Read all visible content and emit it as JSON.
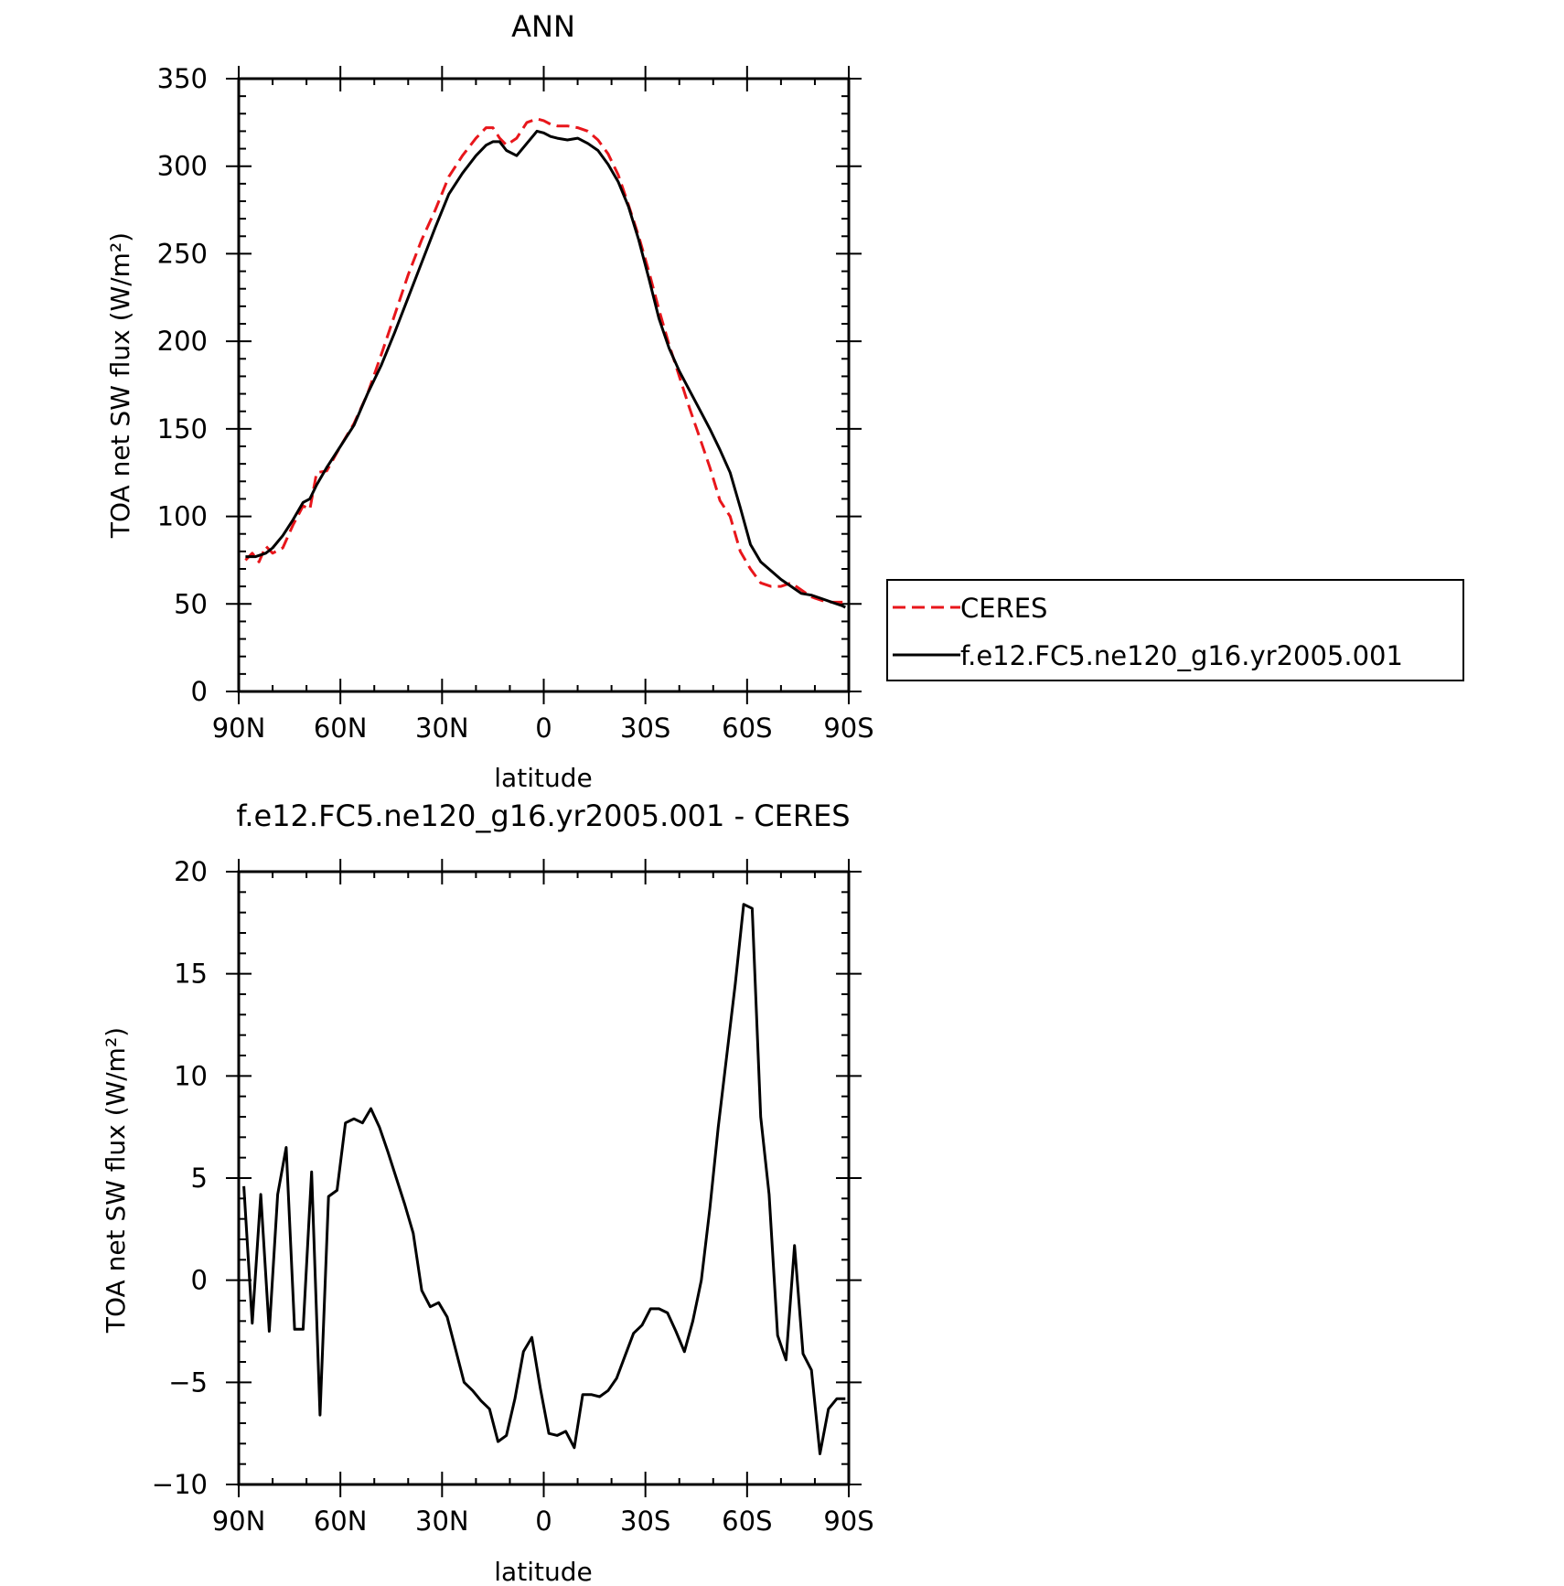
{
  "chart_data": [
    {
      "type": "line",
      "title": "ANN",
      "xlabel": "latitude",
      "ylabel": "TOA net SW flux (W/m²)",
      "xlim": [
        90,
        -90
      ],
      "ylim": [
        0,
        350
      ],
      "xticks": [
        90,
        60,
        30,
        0,
        -30,
        -60,
        -90
      ],
      "xtick_labels": [
        "90N",
        "60N",
        "30N",
        "0",
        "30S",
        "60S",
        "90S"
      ],
      "yticks": [
        0,
        50,
        100,
        150,
        200,
        250,
        300,
        350
      ],
      "ytick_labels": [
        "0",
        "50",
        "100",
        "150",
        "200",
        "250",
        "300",
        "350"
      ],
      "legend_position": "right",
      "series": [
        {
          "name": "CERES",
          "color": "#e8161b",
          "dash": "dashed",
          "x": [
            88,
            86,
            84,
            82,
            80,
            77,
            74,
            71,
            69,
            67,
            64,
            60,
            56,
            52,
            48,
            44,
            40,
            36,
            32,
            28,
            24,
            20,
            17,
            15,
            13,
            11,
            8,
            5,
            2,
            0,
            -2,
            -4,
            -7,
            -10,
            -13,
            -16,
            -19,
            -22,
            -25,
            -28,
            -31,
            -34,
            -37,
            -40,
            -43,
            -46,
            -49,
            -52,
            -55,
            -58,
            -61,
            -64,
            -67,
            -70,
            -73,
            -76,
            -79,
            -82,
            -85,
            -88,
            -89
          ],
          "values": [
            75,
            79,
            74,
            83,
            79,
            82,
            95,
            106,
            104,
            125,
            126,
            140,
            153,
            170,
            192,
            215,
            238,
            258,
            275,
            294,
            306,
            316,
            322,
            322,
            316,
            312,
            316,
            325,
            327,
            326,
            324,
            323,
            323,
            322,
            320,
            315,
            307,
            295,
            278,
            260,
            240,
            218,
            198,
            180,
            162,
            145,
            128,
            109,
            100,
            80,
            70,
            62,
            60,
            60,
            62,
            58,
            54,
            52,
            51,
            51,
            51
          ]
        },
        {
          "name": "f.e12.FC5.ne120_g16.yr2005.001",
          "color": "#000000",
          "dash": "solid",
          "x": [
            88,
            85,
            82,
            80,
            77,
            74,
            71,
            69,
            67,
            64,
            60,
            56,
            52,
            48,
            44,
            40,
            36,
            32,
            28,
            24,
            20,
            17,
            15,
            13,
            11,
            8,
            5,
            2,
            0,
            -2,
            -4,
            -7,
            -10,
            -13,
            -16,
            -19,
            -22,
            -25,
            -28,
            -31,
            -34,
            -37,
            -40,
            -43,
            -46,
            -49,
            -52,
            -55,
            -58,
            -61,
            -64,
            -67,
            -70,
            -73,
            -76,
            -79,
            -82,
            -85,
            -88,
            -89
          ],
          "values": [
            77,
            77,
            79,
            82,
            89,
            98,
            108,
            110,
            118,
            128,
            140,
            152,
            170,
            186,
            205,
            225,
            245,
            265,
            284,
            296,
            306,
            312,
            314,
            314,
            309,
            306,
            313,
            320,
            319,
            317,
            316,
            315,
            316,
            313,
            309,
            301,
            291,
            277,
            258,
            236,
            213,
            196,
            183,
            172,
            161,
            150,
            138,
            125,
            105,
            84,
            74,
            69,
            64,
            60,
            56,
            55,
            53,
            51,
            49,
            48
          ]
        }
      ]
    },
    {
      "type": "line",
      "title": "f.e12.FC5.ne120_g16.yr2005.001 - CERES",
      "xlabel": "latitude",
      "ylabel": "TOA net SW flux (W/m²)",
      "xlim": [
        90,
        -90
      ],
      "ylim": [
        -10,
        20
      ],
      "xticks": [
        90,
        60,
        30,
        0,
        -30,
        -60,
        -90
      ],
      "xtick_labels": [
        "90N",
        "60N",
        "30N",
        "0",
        "30S",
        "60S",
        "90S"
      ],
      "yticks": [
        -10,
        -5,
        0,
        5,
        10,
        15,
        20
      ],
      "ytick_labels": [
        "−10",
        "−5",
        "0",
        "5",
        "10",
        "15",
        "20"
      ],
      "series": [
        {
          "color": "#000000",
          "dash": "solid",
          "x": [
            88.5,
            86,
            83.5,
            81,
            78.5,
            76,
            73.5,
            71,
            68.5,
            66,
            63.5,
            61,
            58.5,
            56,
            53.5,
            51,
            48.5,
            46,
            43.5,
            41,
            38.5,
            36,
            33.5,
            31,
            28.5,
            26,
            23.5,
            21,
            18.5,
            16,
            13.5,
            11,
            8.5,
            6,
            3.5,
            1,
            -1.5,
            -4,
            -6.5,
            -9,
            -11.5,
            -14,
            -16.5,
            -19,
            -21.5,
            -24,
            -26.5,
            -29,
            -31.5,
            -34,
            -36.5,
            -39,
            -41.5,
            -44,
            -46.5,
            -49,
            -51.5,
            -54,
            -56.5,
            -59,
            -61.5,
            -64,
            -66.5,
            -69,
            -71.5,
            -74,
            -76.5,
            -79,
            -81.5,
            -84,
            -86.5,
            -89
          ],
          "values": [
            4.6,
            -2.1,
            4.2,
            -2.5,
            4.2,
            6.5,
            -2.4,
            -2.4,
            5.3,
            -6.6,
            4.1,
            4.4,
            7.7,
            7.9,
            7.7,
            8.4,
            7.5,
            6.3,
            5.0,
            3.7,
            2.3,
            -0.5,
            -1.3,
            -1.1,
            -1.8,
            -3.4,
            -5.0,
            -5.4,
            -5.9,
            -6.3,
            -7.9,
            -7.6,
            -5.8,
            -3.5,
            -2.8,
            -5.3,
            -7.5,
            -7.6,
            -7.4,
            -8.2,
            -5.6,
            -5.6,
            -5.7,
            -5.4,
            -4.8,
            -3.7,
            -2.6,
            -2.2,
            -1.4,
            -1.4,
            -1.6,
            -2.5,
            -3.5,
            -2.0,
            0.0,
            3.5,
            7.5,
            11.0,
            14.5,
            18.4,
            18.2,
            8.0,
            4.2,
            -2.7,
            -3.9,
            1.7,
            -3.6,
            -4.4,
            -8.5,
            -6.3,
            -5.8,
            -5.8
          ]
        }
      ]
    }
  ]
}
